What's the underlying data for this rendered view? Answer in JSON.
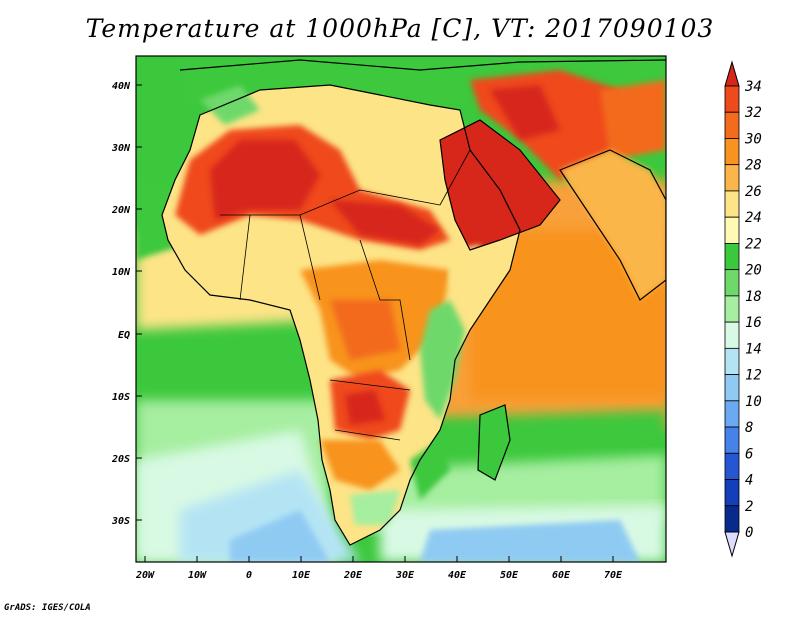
{
  "title": "Temperature at 1000hPa [C], VT: 2017090103",
  "credit": "GrADS: IGES/COLA",
  "lon_ticks": [
    "20W",
    "10W",
    "0",
    "10E",
    "20E",
    "30E",
    "40E",
    "50E",
    "60E",
    "70E"
  ],
  "lat_ticks": [
    "40N",
    "30N",
    "20N",
    "10N",
    "EQ",
    "10S",
    "20S",
    "30S"
  ],
  "colorbar": {
    "levels": [
      "34",
      "32",
      "30",
      "28",
      "26",
      "24",
      "22",
      "20",
      "18",
      "16",
      "14",
      "12",
      "10",
      "8",
      "6",
      "4",
      "2",
      "0"
    ],
    "colors": [
      "#d7261a",
      "#ef4a1c",
      "#f36b1d",
      "#f8931f",
      "#fbb64a",
      "#fde487",
      "#fff9b4",
      "#3cc83c",
      "#6ed96a",
      "#a6eea0",
      "#d8f9e4",
      "#b4e4f4",
      "#8fcaf3",
      "#6aaaf2",
      "#4583eb",
      "#2557d5",
      "#133fbb",
      "#092a8d",
      "#030f5a"
    ]
  },
  "colors": {
    "coast": "#000000",
    "sea_north": "#3cc83c",
    "sea_south": "#a6eea0",
    "land_hot": "#d7261a"
  }
}
